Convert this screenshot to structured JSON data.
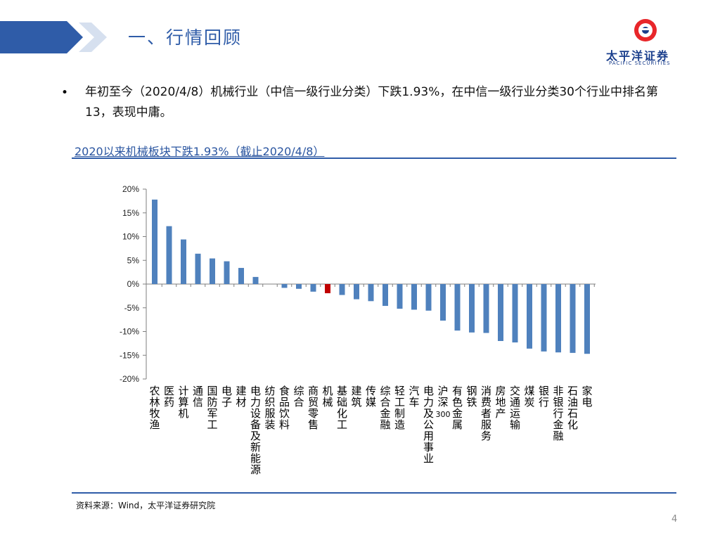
{
  "header": {
    "title": "一、行情回顾"
  },
  "logo": {
    "name_cn": "太平洋证券",
    "name_en": "PACIFIC SECURITIES"
  },
  "bullet_text": "年初至今（2020/4/8）机械行业（中信一级行业分类）下跌1.93%，在中信一级行业分类30个行业中排名第13，表现中庸。",
  "chart_title": "2020以来机械板块下跌1.93%（截止2020/4/8）",
  "chart_data": {
    "type": "bar",
    "title": "2020以来机械板块下跌1.93%（截止2020/4/8）",
    "xlabel": "",
    "ylabel": "",
    "ylim": [
      -20,
      20
    ],
    "yticks": [
      20,
      15,
      10,
      5,
      0,
      -5,
      -10,
      -15,
      -20
    ],
    "ytick_labels": [
      "20%",
      "15%",
      "10%",
      "5%",
      "0%",
      "-5%",
      "-10%",
      "-15%",
      "-20%"
    ],
    "categories": [
      "农林牧渔",
      "医药",
      "计算机",
      "通信",
      "国防军工",
      "电子",
      "建材",
      "电力设备及新能源",
      "纺织服装",
      "食品饮料",
      "综合",
      "商贸零售",
      "机械",
      "基础化工",
      "建筑",
      "传媒",
      "综合金融",
      "轻工制造",
      "汽车",
      "电力及公用事业",
      "沪深300",
      "有色金属",
      "钢铁",
      "消费者服务",
      "房地产",
      "交通运输",
      "煤炭",
      "银行",
      "非银行金融",
      "石油石化",
      "家电"
    ],
    "values": [
      17.8,
      12.2,
      9.4,
      6.4,
      5.4,
      4.8,
      3.4,
      1.5,
      0,
      -0.8,
      -1.0,
      -1.6,
      -1.93,
      -2.3,
      -3.2,
      -3.6,
      -4.6,
      -5.2,
      -5.4,
      -5.6,
      -7.7,
      -9.8,
      -10.2,
      -10.3,
      -12.0,
      -12.3,
      -13.6,
      -14.2,
      -14.4,
      -14.5,
      -14.7
    ],
    "highlight": "机械",
    "bar_color": "#4f81bd",
    "highlight_color": "#c00000"
  },
  "source_text": "资料来源：Wind，太平洋证券研究院",
  "page_number": "4",
  "colors": {
    "accent": "#2f5ca8",
    "logo_red": "#e8262a"
  }
}
